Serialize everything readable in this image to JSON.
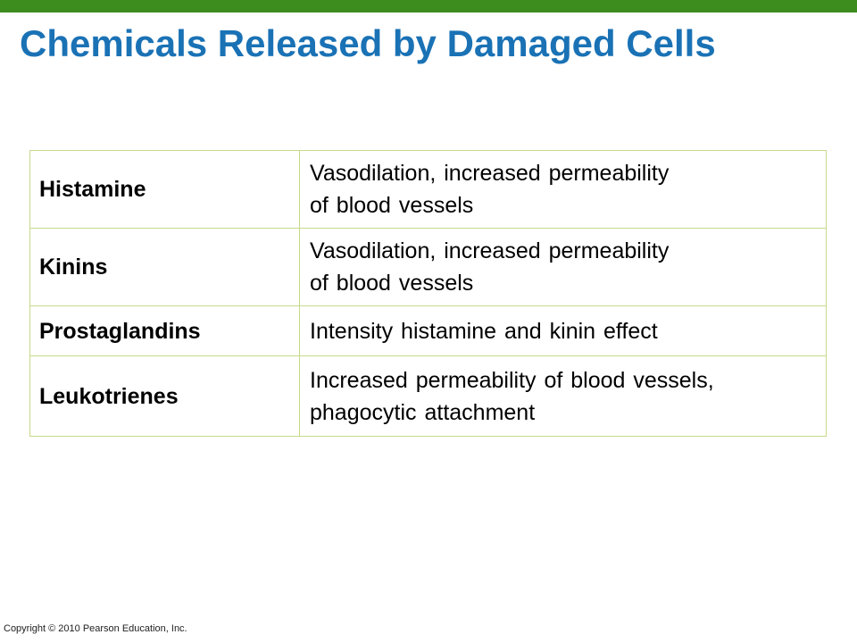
{
  "colors": {
    "top_bar": "#3d8c1e",
    "title": "#1a72b5",
    "table_border": "#c6d98a"
  },
  "slide": {
    "title": "Chemicals Released by Damaged Cells"
  },
  "table": {
    "rows": [
      {
        "name": "Histamine",
        "effect_line1": "Vasodilation, increased permeability",
        "effect_line2": "of blood vessels"
      },
      {
        "name": "Kinins",
        "effect_line1": "Vasodilation, increased permeability",
        "effect_line2": "of blood vessels"
      },
      {
        "name": "Prostaglandins",
        "effect_line1": "Intensity histamine and kinin effect"
      },
      {
        "name": "Leukotrienes",
        "effect_line1": "Increased permeability of blood vessels,",
        "effect_line2": "phagocytic attachment"
      }
    ]
  },
  "footer": {
    "copyright": "Copyright © 2010 Pearson Education, Inc."
  }
}
